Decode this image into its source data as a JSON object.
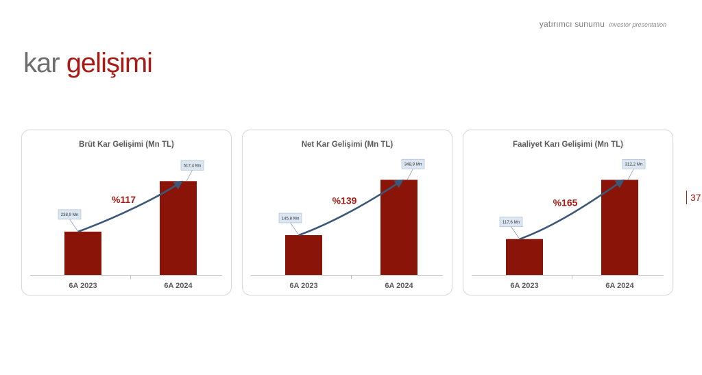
{
  "header": {
    "main": "yatırımcı sunumu",
    "sub": "investor presentation"
  },
  "title": {
    "part1": "kar ",
    "part2": "gelişimi"
  },
  "page_number": "37",
  "colors": {
    "bar": "#8b1409",
    "arrow": "#3c5878",
    "growth_text": "#a51c16",
    "title_gray": "#6d6d6d",
    "title_accent": "#a51c16",
    "callout_fill": "#dbe6f1",
    "callout_border": "#9fb7d0"
  },
  "chart_data": [
    {
      "type": "bar",
      "title": "Brüt Kar Gelişimi (Mn TL)",
      "categories": [
        "6A 2023",
        "6A 2024"
      ],
      "values": [
        238.9,
        517.4
      ],
      "data_labels": [
        "238,9 Mn",
        "517,4 Mn"
      ],
      "growth_label": "%117",
      "ylim": [
        0,
        560
      ],
      "grid": false,
      "legend": "none"
    },
    {
      "type": "bar",
      "title": "Net Kar Gelişimi (Mn TL)",
      "categories": [
        "6A 2023",
        "6A 2024"
      ],
      "values": [
        145.8,
        348.9
      ],
      "data_labels": [
        "145,8 Mn",
        "348,9 Mn"
      ],
      "growth_label": "%139",
      "ylim": [
        0,
        372
      ],
      "grid": false,
      "legend": "none"
    },
    {
      "type": "bar",
      "title": "Faaliyet Karı Gelişimi (Mn TL)",
      "categories": [
        "6A 2023",
        "6A 2024"
      ],
      "values": [
        117.6,
        312.2
      ],
      "data_labels": [
        "117,6 Mn",
        "312,2 Mn"
      ],
      "growth_label": "%165",
      "ylim": [
        0,
        333
      ],
      "grid": false,
      "legend": "none"
    }
  ]
}
